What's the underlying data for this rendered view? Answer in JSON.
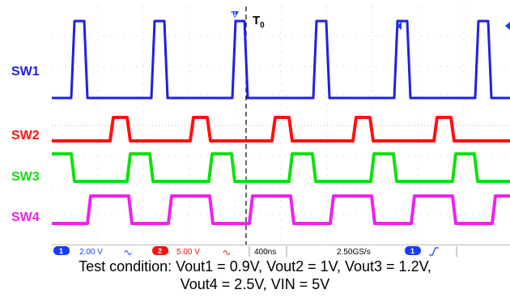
{
  "channels": [
    {
      "label": "SW1",
      "color": "#2020e0"
    },
    {
      "label": "SW2",
      "color": "#ff1010"
    },
    {
      "label": "SW3",
      "color": "#10e010"
    },
    {
      "label": "SW4",
      "color": "#f020f0"
    }
  ],
  "trigger_marker": "T",
  "trigger_marker_sub": "0",
  "status_bar": {
    "ch1_number": "1",
    "ch1_scale": "2.00 V",
    "ch2_number": "2",
    "ch2_scale": "5.00 V",
    "timebase": "400ns",
    "sample_rate": "2.50GS/s",
    "trigger_channel": "1",
    "trigger_slope_icon": "rising-edge-icon"
  },
  "caption": {
    "line1": "Test condition: Vout1 = 0.9V, Vout2 = 1V, Vout3 = 1.2V,",
    "line2": "Vout4 = 2.5V, VIN = 5V"
  }
}
